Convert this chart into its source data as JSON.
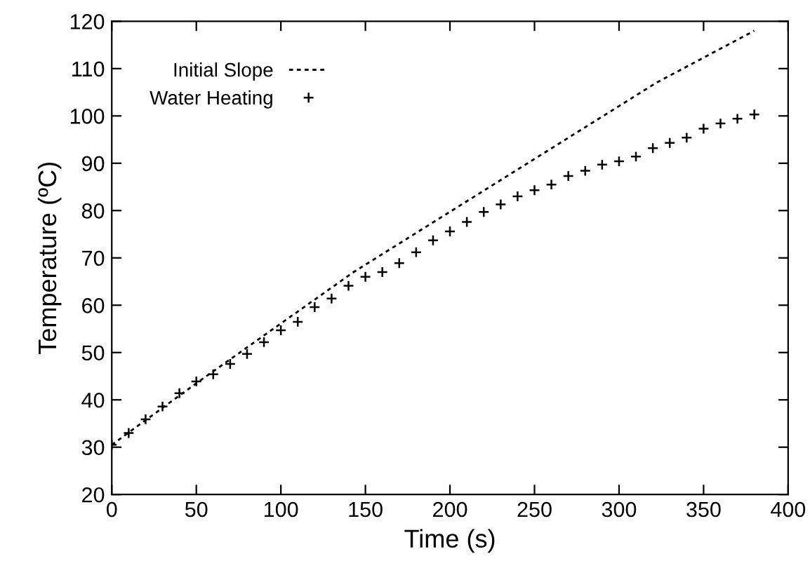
{
  "chart_data": {
    "type": "scatter",
    "xlabel": "Time (s)",
    "ylabel": "Temperature (ºC)",
    "xlim": [
      0,
      400
    ],
    "xticks": [
      0,
      50,
      100,
      150,
      200,
      250,
      300,
      350,
      400
    ],
    "ylim": [
      20,
      120
    ],
    "yticks": [
      20,
      30,
      40,
      50,
      60,
      70,
      80,
      90,
      100,
      110,
      120
    ],
    "legend": "top left",
    "series": [
      {
        "name": "Initial Slope",
        "type": "line",
        "line_style": "dotted",
        "marker": "none",
        "color": "#000000",
        "x": [
          0,
          50,
          143,
          322,
          380
        ],
        "values": [
          30.5,
          43.5,
          67,
          107,
          118
        ]
      },
      {
        "name": "Water Heating",
        "marker": "cross",
        "color": "#000000",
        "x": [
          0,
          10,
          20,
          30,
          40,
          50,
          60,
          70,
          80,
          90,
          100,
          110,
          120,
          130,
          140,
          150,
          160,
          170,
          180,
          190,
          200,
          210,
          220,
          230,
          240,
          250,
          260,
          270,
          280,
          290,
          300,
          310,
          320,
          330,
          340,
          350,
          360,
          370,
          380
        ],
        "values": [
          30.5,
          33,
          35.9,
          38.6,
          41.4,
          43.9,
          45.4,
          47.6,
          49.7,
          52.2,
          54.7,
          56.5,
          59.6,
          61.4,
          64.1,
          66,
          67,
          68.9,
          71.2,
          73.7,
          75.6,
          77.6,
          79.7,
          81.3,
          83,
          84.3,
          85.5,
          87.3,
          88.4,
          89.7,
          90.4,
          91.4,
          93.2,
          94.3,
          95.4,
          97.3,
          98.4,
          99.4,
          100.3
        ]
      }
    ]
  }
}
